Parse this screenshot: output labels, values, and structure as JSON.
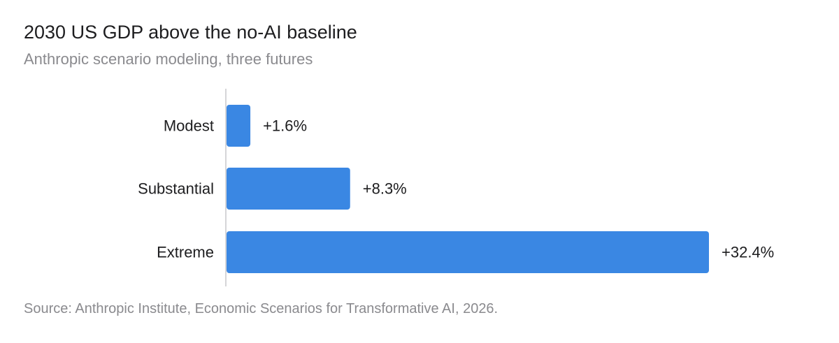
{
  "chart_data": {
    "type": "bar",
    "orientation": "horizontal",
    "title": "2030 US GDP above the no-AI baseline",
    "subtitle": "Anthropic scenario modeling, three futures",
    "source": "Source: Anthropic Institute, Economic Scenarios for Transformative AI, 2026.",
    "categories": [
      "Modest",
      "Substantial",
      "Extreme"
    ],
    "values": [
      1.6,
      8.3,
      32.4
    ],
    "value_labels": [
      "+1.6%",
      "+8.3%",
      "+32.4%"
    ],
    "unit": "%",
    "xlim": [
      0,
      32.4
    ],
    "grid": false,
    "legend": "none",
    "bar_color": "#3a87e3",
    "axis_color": "#c7c7cc"
  }
}
